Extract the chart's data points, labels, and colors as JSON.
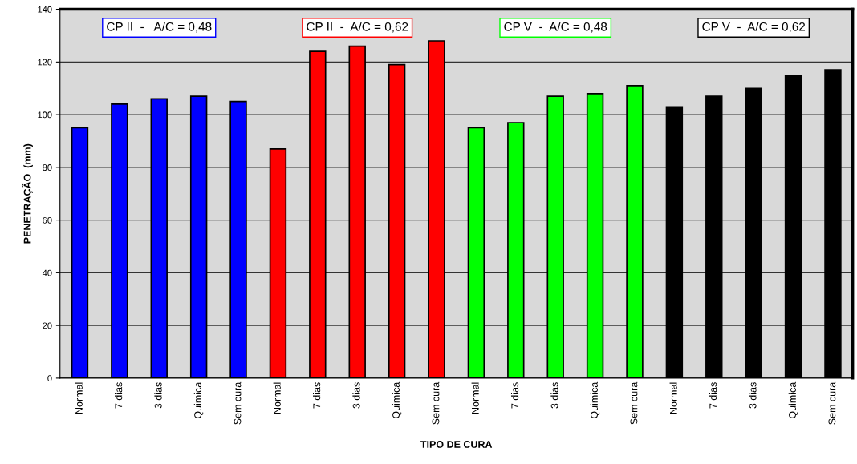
{
  "chart_data": {
    "type": "bar",
    "xlabel": "TIPO DE CURA",
    "ylabel": "PENETRAÇÃO  (mm)",
    "categories": [
      "Normal",
      "7 dias",
      "3 dias",
      "Quimica",
      "Sem cura",
      "Normal",
      "7 dias",
      "3 dias",
      "Quimica",
      "Sem cura",
      "Normal",
      "7 dias",
      "3 dias",
      "Quimica",
      "Sem cura",
      "Normal",
      "7 dias",
      "3 dias",
      "Quimica",
      "Sem cura"
    ],
    "values": [
      95,
      104,
      106,
      107,
      105,
      87,
      124,
      126,
      119,
      128,
      95,
      97,
      107,
      108,
      111,
      103,
      107,
      110,
      115,
      117
    ],
    "colors": [
      "#0000ff",
      "#0000ff",
      "#0000ff",
      "#0000ff",
      "#0000ff",
      "#ff0000",
      "#ff0000",
      "#ff0000",
      "#ff0000",
      "#ff0000",
      "#00ff00",
      "#00ff00",
      "#00ff00",
      "#00ff00",
      "#00ff00",
      "#000000",
      "#000000",
      "#000000",
      "#000000",
      "#000000"
    ],
    "ylim": [
      0,
      140
    ],
    "yticks": [
      0,
      20,
      40,
      60,
      80,
      100,
      120,
      140
    ],
    "grid": "y",
    "annotations": [
      "CP II  -   A/C = 0,48",
      "CP II  -  A/C = 0,62",
      "CP V  -  A/C = 0,48",
      "CP V  -  A/C = 0,62"
    ]
  }
}
